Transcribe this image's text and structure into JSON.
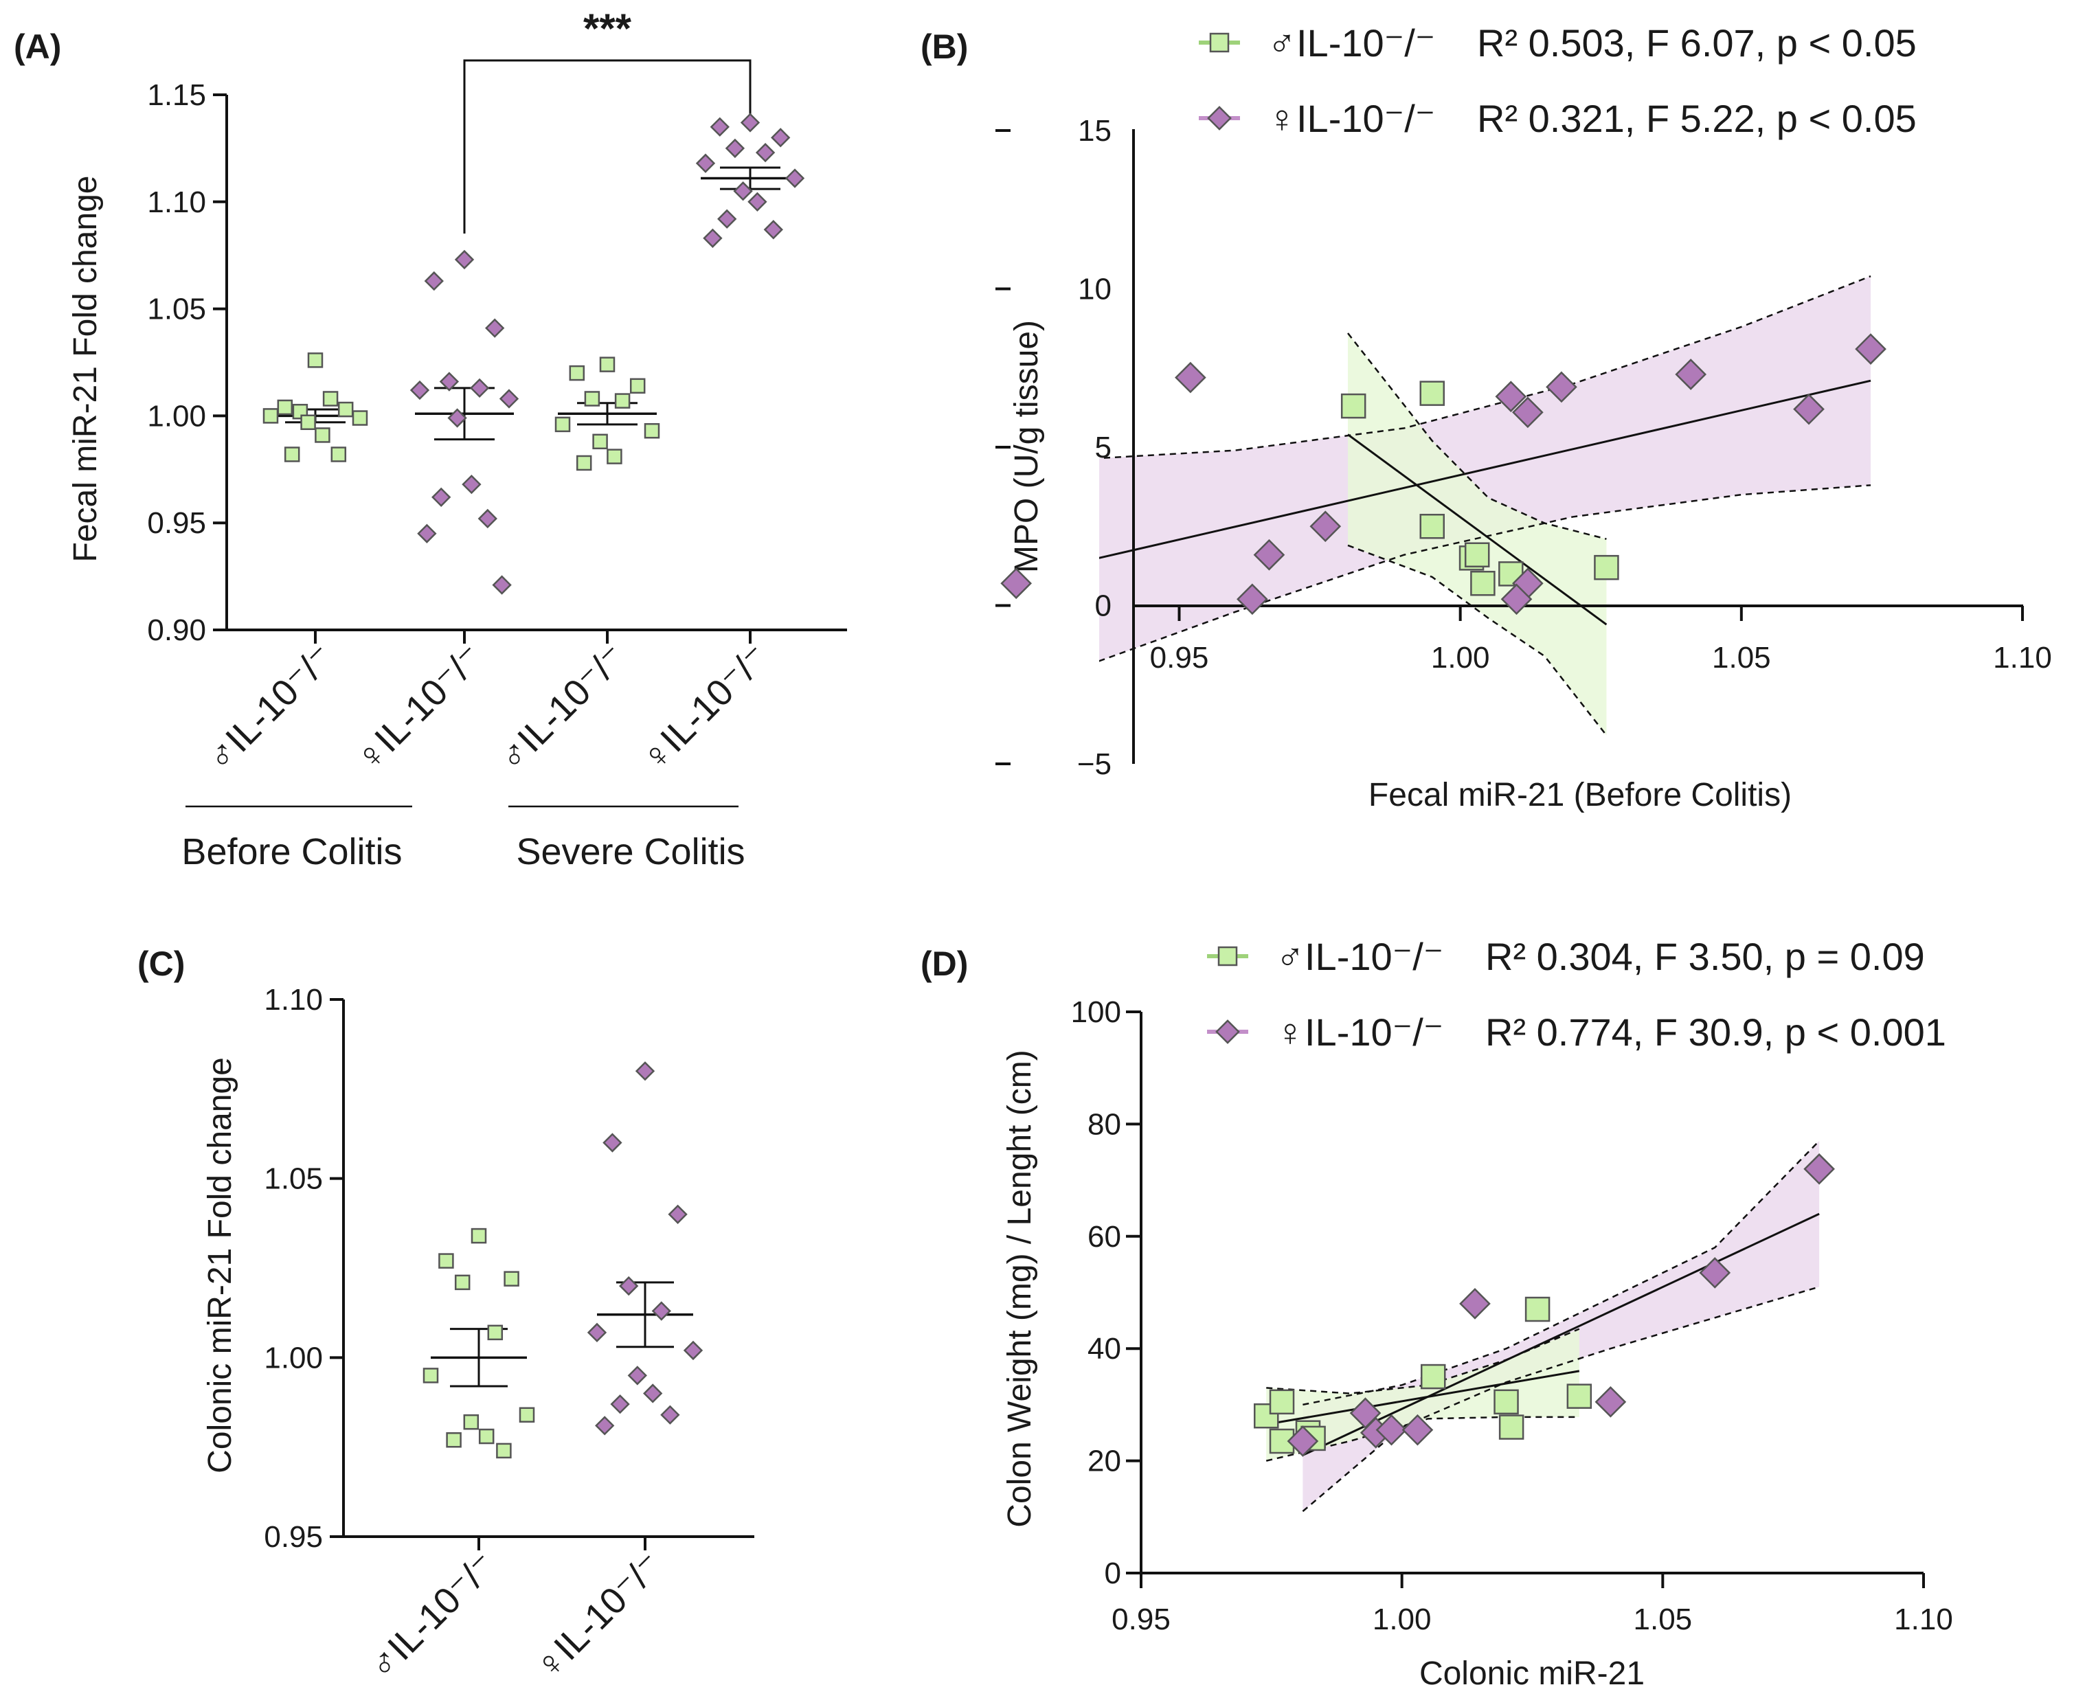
{
  "colors": {
    "male_fill": "#c8f0a8",
    "female_fill": "#b07ab8",
    "male_band": "#e8f8d8",
    "female_band": "#ecdcee",
    "axis": "#111111"
  },
  "icons": {
    "male_marker": "green-square-icon",
    "female_marker": "purple-diamond-icon"
  },
  "chart_data": [
    {
      "id": "A",
      "type": "scatter",
      "panel_label": "(A)",
      "ylabel": "Fecal miR-21 Fold change",
      "ylim": [
        0.9,
        1.15
      ],
      "yticks": [
        "0.90",
        "0.95",
        "1.00",
        "1.05",
        "1.10",
        "1.15"
      ],
      "categories": [
        "♂IL-10⁻/⁻",
        "♀IL-10⁻/⁻",
        "♂IL-10⁻/⁻",
        "♀IL-10⁻/⁻"
      ],
      "groups": [
        "Before Colitis",
        "Severe Colitis"
      ],
      "significance": "***",
      "series": [
        {
          "name": "♂IL-10⁻/⁻ Before Colitis",
          "sex": "male",
          "mean": 1.0,
          "sem": 0.003,
          "values": [
            1.026,
            1.004,
            1.003,
            1.002,
            1.008,
            1.0,
            0.999,
            0.997,
            0.991,
            0.982,
            0.982
          ]
        },
        {
          "name": "♀IL-10⁻/⁻ Before Colitis",
          "sex": "female",
          "mean": 1.001,
          "sem": 0.012,
          "values": [
            1.073,
            1.063,
            1.041,
            1.016,
            1.013,
            1.012,
            1.008,
            0.999,
            0.968,
            0.962,
            0.952,
            0.945,
            0.921
          ]
        },
        {
          "name": "♂IL-10⁻/⁻ Severe Colitis",
          "sex": "male",
          "mean": 1.001,
          "sem": 0.005,
          "values": [
            1.024,
            1.02,
            1.014,
            1.008,
            1.007,
            0.996,
            0.993,
            0.988,
            0.981,
            0.978
          ]
        },
        {
          "name": "♀IL-10⁻/⁻ Severe Colitis",
          "sex": "female",
          "mean": 1.111,
          "sem": 0.005,
          "values": [
            1.137,
            1.135,
            1.13,
            1.125,
            1.123,
            1.118,
            1.111,
            1.105,
            1.1,
            1.092,
            1.087,
            1.083
          ]
        }
      ]
    },
    {
      "id": "B",
      "type": "scatter",
      "panel_label": "(B)",
      "xlabel": "Fecal miR-21 (Before Colitis)",
      "ylabel": "MPO (U/g tissue)",
      "xlim": [
        0.92,
        1.1
      ],
      "ylim": [
        -5,
        15
      ],
      "xticks": [
        "0.95",
        "1.00",
        "1.05",
        "1.10"
      ],
      "yticks": [
        "−5",
        "0",
        "5",
        "10",
        "15"
      ],
      "legend": [
        {
          "label": "♂IL-10⁻/⁻",
          "stats": "R² 0.503, F 6.07, p < 0.05",
          "sex": "male"
        },
        {
          "label": "♀IL-10⁻/⁻",
          "stats": "R² 0.321, F 5.22, p < 0.05",
          "sex": "female"
        }
      ],
      "series": [
        {
          "name": "♂IL-10⁻/⁻",
          "sex": "male",
          "x": [
            0.981,
            0.995,
            0.995,
            1.002,
            1.003,
            1.004,
            1.009,
            1.026
          ],
          "y": [
            6.3,
            6.7,
            2.5,
            1.5,
            1.6,
            0.7,
            1.0,
            1.2
          ],
          "fit": {
            "x": [
              0.98,
              1.026
            ],
            "y": [
              5.4,
              -0.6
            ]
          },
          "ci_upper": {
            "x": [
              0.98,
              0.995,
              1.005,
              1.015,
              1.026
            ],
            "y": [
              8.6,
              5.2,
              3.4,
              2.6,
              2.1
            ]
          },
          "ci_lower": {
            "x": [
              0.98,
              0.995,
              1.005,
              1.015,
              1.026
            ],
            "y": [
              1.9,
              0.9,
              -0.4,
              -1.6,
              -4.1
            ]
          }
        },
        {
          "name": "♀IL-10⁻/⁻",
          "sex": "female",
          "x": [
            0.921,
            0.952,
            0.963,
            0.966,
            0.976,
            1.009,
            1.012,
            1.01,
            1.012,
            1.018,
            1.041,
            1.062,
            1.073
          ],
          "y": [
            0.7,
            7.2,
            0.2,
            1.6,
            2.5,
            6.6,
            0.7,
            0.2,
            6.1,
            6.9,
            7.3,
            6.2,
            8.1
          ],
          "fit": {
            "x": [
              0.921,
              1.073
            ],
            "y": [
              0.9,
              7.1
            ]
          },
          "ci_upper": {
            "x": [
              0.921,
              0.96,
              0.99,
              1.02,
              1.05,
              1.073
            ],
            "y": [
              4.5,
              4.9,
              5.6,
              7.0,
              8.8,
              10.4
            ]
          },
          "ci_lower": {
            "x": [
              0.921,
              0.96,
              0.99,
              1.02,
              1.05,
              1.073
            ],
            "y": [
              -2.7,
              -0.2,
              1.6,
              2.8,
              3.5,
              3.8
            ]
          }
        }
      ]
    },
    {
      "id": "C",
      "type": "scatter",
      "panel_label": "(C)",
      "ylabel": "Colonic miR-21 Fold change",
      "ylim": [
        0.95,
        1.1
      ],
      "yticks": [
        "0.95",
        "1.00",
        "1.05",
        "1.10"
      ],
      "categories": [
        "♂IL-10⁻/⁻",
        "♀IL-10⁻/⁻"
      ],
      "series": [
        {
          "name": "♂IL-10⁻/⁻",
          "sex": "male",
          "mean": 1.0,
          "sem": 0.008,
          "values": [
            1.034,
            1.027,
            1.022,
            1.021,
            1.007,
            0.995,
            0.984,
            0.982,
            0.978,
            0.977,
            0.974
          ]
        },
        {
          "name": "♀IL-10⁻/⁻",
          "sex": "female",
          "mean": 1.012,
          "sem": 0.009,
          "values": [
            1.08,
            1.06,
            1.04,
            1.02,
            1.013,
            1.007,
            1.002,
            0.995,
            0.99,
            0.987,
            0.984,
            0.981
          ]
        }
      ]
    },
    {
      "id": "D",
      "type": "scatter",
      "panel_label": "(D)",
      "xlabel": "Colonic miR-21",
      "ylabel": "Colon Weight (mg) / Lenght (cm)",
      "xlim": [
        0.95,
        1.1
      ],
      "ylim": [
        0,
        100
      ],
      "xticks": [
        "0.95",
        "1.00",
        "1.05",
        "1.10"
      ],
      "yticks": [
        "0",
        "20",
        "40",
        "60",
        "80",
        "100"
      ],
      "legend": [
        {
          "label": "♂IL-10⁻/⁻",
          "stats": "R² 0.304, F 3.50, p = 0.09",
          "sex": "male"
        },
        {
          "label": "♀IL-10⁻/⁻",
          "stats": "R² 0.774, F 30.9, p < 0.001",
          "sex": "female"
        }
      ],
      "series": [
        {
          "name": "♂IL-10⁻/⁻",
          "sex": "male",
          "x": [
            0.974,
            0.977,
            0.977,
            0.982,
            0.983,
            1.006,
            1.02,
            1.021,
            1.026,
            1.034
          ],
          "y": [
            28,
            30.5,
            23.5,
            25,
            24,
            35,
            30.5,
            26,
            47,
            31.5
          ],
          "fit": {
            "x": [
              0.974,
              1.034
            ],
            "y": [
              26.5,
              36
            ]
          },
          "ci_upper": {
            "x": [
              0.974,
              0.99,
              1.005,
              1.02,
              1.034
            ],
            "y": [
              33,
              32,
              33.5,
              38,
              43.5
            ]
          },
          "ci_lower": {
            "x": [
              0.974,
              0.99,
              1.005,
              1.02,
              1.034
            ],
            "y": [
              20,
              23.5,
              27.5,
              27.8,
              27.8
            ]
          }
        },
        {
          "name": "♀IL-10⁻/⁻",
          "sex": "female",
          "x": [
            0.981,
            0.993,
            0.995,
            0.998,
            1.003,
            1.014,
            1.04,
            1.06,
            1.08
          ],
          "y": [
            23.5,
            28.5,
            25,
            25.5,
            25.5,
            48,
            30.5,
            53.5,
            72
          ],
          "fit": {
            "x": [
              0.981,
              1.08
            ],
            "y": [
              21,
              64
            ]
          },
          "ci_upper": {
            "x": [
              0.981,
              1.0,
              1.02,
              1.04,
              1.06,
              1.08
            ],
            "y": [
              30,
              33.5,
              40,
              49,
              58,
              77
            ]
          },
          "ci_lower": {
            "x": [
              0.981,
              1.0,
              1.02,
              1.04,
              1.06,
              1.08
            ],
            "y": [
              11,
              26,
              34,
              40,
              45.5,
              51
            ]
          }
        }
      ]
    }
  ]
}
